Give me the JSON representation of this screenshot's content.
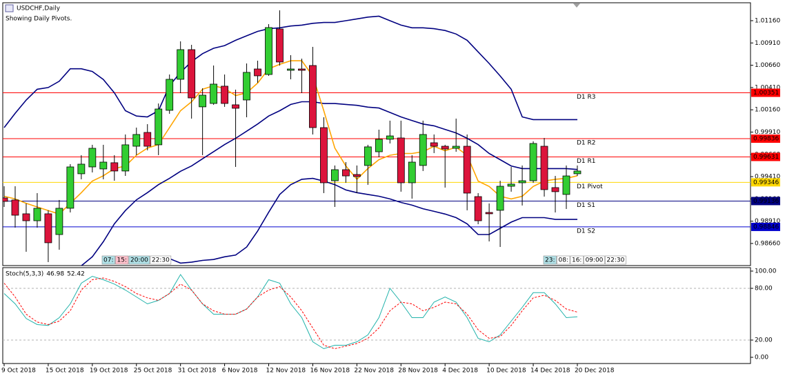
{
  "chart_data": [
    {
      "type": "candlestick",
      "title": "USDCHF,Daily",
      "subtitle": "Showing Daily Pivots.",
      "categories": [
        "9 Oct 2018",
        null,
        null,
        null,
        "15 Oct 2018",
        null,
        null,
        null,
        "19 Oct 2018",
        null,
        null,
        null,
        "25 Oct 2018",
        null,
        null,
        null,
        "31 Oct 2018",
        null,
        null,
        null,
        "6 Nov 2018",
        null,
        null,
        null,
        "12 Nov 2018",
        null,
        null,
        null,
        "16 Nov 2018",
        null,
        null,
        null,
        "22 Nov 2018",
        null,
        null,
        null,
        "28 Nov 2018",
        null,
        null,
        null,
        "4 Dec 2018",
        null,
        null,
        null,
        "10 Dec 2018",
        null,
        null,
        null,
        "14 Dec 2018",
        null,
        null,
        null,
        "20 Dec 2018"
      ],
      "open": [
        0.99171,
        0.99148,
        0.98993,
        0.98915,
        0.98993,
        0.9876,
        0.99055,
        0.99442,
        0.99519,
        0.99496,
        0.99566,
        0.99473,
        0.99751,
        0.99906,
        0.99767,
        1.00154,
        1.00502,
        1.00835,
        1.00193,
        1.00231,
        1.00425,
        1.00216,
        1.0027,
        1.00618,
        1.00556,
        1.01067,
        1.00603,
        1.00618,
        1.00657,
        0.9996,
        0.99364,
        0.99488,
        0.99434,
        0.99535,
        0.99689,
        0.99829,
        0.99844,
        0.99341,
        0.99535,
        0.9979,
        0.99751,
        0.99728,
        0.99751,
        0.99186,
        0.99008,
        0.99032,
        0.99302,
        0.99341,
        0.99364,
        0.99751,
        0.99287,
        0.9921,
        0.99442
      ],
      "high": [
        0.99302,
        0.99302,
        0.99109,
        0.99225,
        0.99032,
        0.99148,
        0.9955,
        0.99651,
        0.99767,
        0.99767,
        0.99651,
        0.99883,
        0.9996,
        0.99999,
        1.00231,
        1.00556,
        1.00928,
        1.00889,
        1.00402,
        1.00657,
        1.00556,
        1.00386,
        1.0068,
        1.00711,
        1.01121,
        1.01276,
        1.00773,
        1.00734,
        1.00866,
        1.00076,
        0.99535,
        0.99573,
        0.99535,
        0.99767,
        0.99937,
        1.00038,
        1.00038,
        0.99651,
        1.00038,
        0.99883,
        0.99767,
        1.00061,
        0.99883,
        0.99225,
        0.99109,
        0.99364,
        0.99519,
        0.99535,
        0.99806,
        0.99844,
        0.99418,
        0.99535,
        0.99535
      ],
      "low": [
        0.9907,
        0.98838,
        0.98567,
        0.98838,
        0.98451,
        0.9859,
        0.99008,
        0.9938,
        0.99457,
        0.9938,
        0.99364,
        0.99418,
        0.99651,
        0.99705,
        0.99651,
        1.00115,
        1.00347,
        1.00061,
        0.99651,
        1.00216,
        1.00193,
        0.99519,
        1.00076,
        1.00463,
        1.00541,
        1.00657,
        1.00502,
        1.00347,
        0.99883,
        0.99225,
        0.9907,
        0.99341,
        0.99225,
        0.99318,
        0.99628,
        0.99782,
        0.99241,
        0.99163,
        0.99473,
        0.99674,
        0.99287,
        0.99689,
        0.99032,
        0.98876,
        0.98683,
        0.98621,
        0.99241,
        0.99086,
        0.99341,
        0.99186,
        0.99008,
        0.99047,
        0.99418
      ],
      "close": [
        0.99132,
        0.98977,
        0.98915,
        0.99055,
        0.98668,
        0.99055,
        0.99519,
        0.9955,
        0.99728,
        0.99573,
        0.99473,
        0.99767,
        0.99883,
        0.99751,
        1.00169,
        1.00502,
        1.00835,
        1.00293,
        1.00324,
        1.00448,
        1.00231,
        1.00177,
        1.0058,
        1.00541,
        1.01083,
        1.00696,
        1.00618,
        1.00603,
        0.9996,
        0.99341,
        0.99488,
        0.99418,
        0.99411,
        0.99744,
        0.99829,
        0.99867,
        0.99341,
        0.99573,
        0.99883,
        0.99751,
        0.9972,
        0.99751,
        0.99225,
        0.98915,
        0.98993,
        0.99302,
        0.99326,
        0.99364,
        0.99782,
        0.99264,
        0.99241,
        0.99418,
        0.99473
      ],
      "up_color": "#32cd32",
      "down_color": "#dc143c",
      "series": [
        {
          "color": "#000080",
          "values": [
            0.9996,
            1.0012,
            1.0027,
            1.0039,
            1.0041,
            1.0048,
            1.0062,
            1.0062,
            1.0059,
            1.005,
            1.0035,
            1.0015,
            1.0009,
            1.0008,
            1.0015,
            1.0043,
            1.0058,
            1.007,
            1.0079,
            1.0085,
            1.0088,
            1.0094,
            1.0099,
            1.0104,
            1.0107,
            1.0108,
            1.011,
            1.0111,
            1.0113,
            1.0114,
            1.0114,
            1.0116,
            1.0118,
            1.012,
            1.0121,
            1.0116,
            1.0111,
            1.0108,
            1.0108,
            1.0107,
            1.0105,
            1.0101,
            1.0094,
            1.0081,
            1.0068,
            1.0054,
            1.0039,
            1.0008,
            1.0005,
            1.0005,
            1.0005,
            1.0005,
            1.0005
          ]
        },
        {
          "color": "#000080",
          "values": [
            null,
            null,
            null,
            null,
            null,
            null,
            null,
            0.9841,
            0.9851,
            0.9868,
            0.9888,
            0.9903,
            0.9915,
            0.9923,
            0.9932,
            0.9939,
            0.9947,
            0.9953,
            0.9961,
            0.9969,
            0.9977,
            0.9984,
            0.9992,
            1.0,
            1.0009,
            1.0015,
            1.0022,
            1.0025,
            1.0025,
            1.0023,
            1.0023,
            1.0022,
            1.0021,
            1.0019,
            1.0018,
            1.0013,
            1.0008,
            1.0004,
            1.0,
            0.9998,
            0.9994,
            0.999,
            0.9984,
            0.9977,
            0.9967,
            0.996,
            0.9953,
            0.995,
            0.995,
            0.995,
            0.995,
            0.995,
            0.9949
          ]
        },
        {
          "color": "#000080",
          "values": [
            null,
            null,
            null,
            null,
            null,
            null,
            null,
            null,
            null,
            null,
            null,
            null,
            null,
            null,
            null,
            0.9849,
            0.9844,
            0.9845,
            0.9847,
            0.9848,
            0.9851,
            0.9853,
            0.9862,
            0.988,
            0.9901,
            0.9921,
            0.9932,
            0.9938,
            0.9939,
            0.9936,
            0.9932,
            0.9926,
            0.9923,
            0.9921,
            0.9919,
            0.9916,
            0.9912,
            0.9909,
            0.9905,
            0.9902,
            0.9899,
            0.9895,
            0.9888,
            0.9876,
            0.9876,
            0.9883,
            0.989,
            0.9895,
            0.9895,
            0.9895,
            0.9893,
            0.9893,
            0.9893
          ]
        },
        {
          "color": "#ffa500",
          "values": [
            0.9919,
            0.9916,
            0.9911,
            0.9907,
            0.9903,
            0.9899,
            0.9911,
            0.9923,
            0.9936,
            0.9942,
            0.995,
            0.9953,
            0.9965,
            0.9973,
            0.9977,
            0.9996,
            1.0015,
            1.0025,
            1.0039,
            1.0043,
            1.004,
            1.0032,
            1.0035,
            1.0046,
            1.0062,
            1.0067,
            1.0071,
            1.0071,
            1.0054,
            1.0015,
            0.9973,
            0.9953,
            0.9938,
            0.995,
            0.996,
            0.9965,
            0.9967,
            0.9967,
            0.9969,
            0.9975,
            0.997,
            0.9974,
            0.9965,
            0.9936,
            0.993,
            0.9919,
            0.9916,
            0.9919,
            0.993,
            0.9936,
            0.9938,
            0.9939,
            0.9942
          ]
        }
      ],
      "pivots": [
        {
          "name": "D1 R3",
          "value": 1.00351,
          "color": "#ff0000"
        },
        {
          "name": "D1 R2",
          "value": 0.99836,
          "color": "#ff0000"
        },
        {
          "name": "D1 R1",
          "value": 0.99631,
          "color": "#ff0000"
        },
        {
          "name": "D1 Pivot",
          "value": 0.99346,
          "color": "#ffd700"
        },
        {
          "name": "D1 S1",
          "value": 0.99136,
          "color": "#000080"
        },
        {
          "name": "D1 S2",
          "value": 0.98846,
          "color": "#0000cd"
        }
      ],
      "sessions": [
        [
          "07:",
          "15:",
          "20:00",
          "22:30"
        ],
        [
          "23:",
          "08:",
          "16:",
          "09:00",
          "22:30"
        ]
      ],
      "ylim": [
        0.98412,
        1.01361
      ],
      "yticks": [
        {
          "value": 1.0116,
          "label": "1.01160"
        },
        {
          "value": 1.0091,
          "label": "1.00910"
        },
        {
          "value": 1.0066,
          "label": "1.00660"
        },
        {
          "value": 1.0041,
          "label": "1.00410"
        },
        {
          "value": 1.0016,
          "label": "1.00160"
        },
        {
          "value": 0.9991,
          "label": "0.99910"
        },
        {
          "value": 0.9966,
          "label": "0.99660"
        },
        {
          "value": 0.9941,
          "label": "0.99410"
        },
        {
          "value": 0.9916,
          "label": "0.99160"
        },
        {
          "value": 0.9891,
          "label": "0.98910"
        },
        {
          "value": 0.9866,
          "label": "0.98660"
        }
      ]
    },
    {
      "type": "line",
      "title": "Stoch(5,3,3)",
      "series": [
        {
          "color": "#20b2aa",
          "values": [
            74,
            62,
            45,
            38,
            37,
            46,
            62,
            86,
            94,
            90,
            85,
            78,
            70,
            62,
            66,
            74,
            96,
            78,
            62,
            50,
            50,
            50,
            56,
            70,
            90,
            86,
            62,
            46,
            18,
            10,
            14,
            14,
            18,
            26,
            46,
            80,
            64,
            46,
            46,
            64,
            70,
            64,
            46,
            22,
            18,
            26,
            42,
            58,
            75,
            75,
            62,
            46,
            46.98
          ]
        },
        {
          "color": "#ff0000",
          "dashed": true,
          "values": [
            86,
            70,
            50,
            41,
            38,
            42,
            54,
            78,
            90,
            92,
            88,
            82,
            74,
            69,
            66,
            74,
            85,
            78,
            62,
            54,
            50,
            50,
            56,
            70,
            78,
            82,
            70,
            54,
            34,
            14,
            10,
            13,
            16,
            22,
            34,
            54,
            64,
            62,
            54,
            58,
            64,
            62,
            50,
            32,
            22,
            24,
            37,
            54,
            69,
            72,
            66,
            56,
            52.42
          ]
        }
      ],
      "levels": [
        80,
        20
      ],
      "ylim": [
        -7.2,
        104
      ],
      "yticks": [
        {
          "value": 100,
          "label": "100.00"
        },
        {
          "value": 80,
          "label": "80.00"
        },
        {
          "value": 20,
          "label": "20.00"
        },
        {
          "value": 0,
          "label": "0.00"
        }
      ]
    }
  ]
}
